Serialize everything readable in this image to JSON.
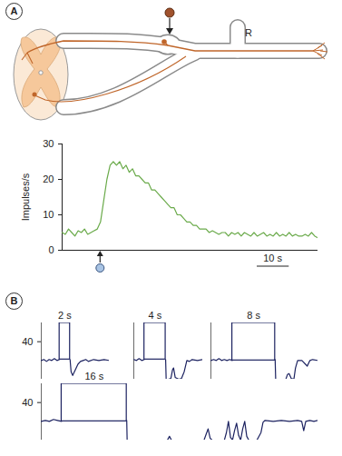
{
  "chart_data": [
    {
      "type": "line",
      "title": "A",
      "annotations": [
        "R"
      ],
      "y_label": "Impulses/s",
      "color": "#6aaa4a",
      "xlim": [
        0,
        80
      ],
      "ylim": [
        0,
        30
      ],
      "yticks": [
        0,
        10,
        20,
        30
      ],
      "tick_labels": "y",
      "stimulus": 12,
      "scale_bar": {
        "start": 61,
        "length": 10,
        "label": "10 s"
      },
      "x": [
        0,
        1,
        2,
        3,
        4,
        5,
        6,
        7,
        8,
        9,
        10,
        11,
        12,
        13,
        14,
        15,
        16,
        17,
        18,
        19,
        20,
        21,
        22,
        23,
        24,
        25,
        26,
        27,
        28,
        29,
        30,
        31,
        32,
        33,
        34,
        35,
        36,
        37,
        38,
        39,
        40,
        41,
        42,
        43,
        44,
        45,
        46,
        47,
        48,
        49,
        50,
        51,
        52,
        53,
        54,
        55,
        56,
        57,
        58,
        59,
        60,
        61,
        62,
        63,
        64,
        65,
        66,
        67,
        68,
        69,
        70,
        71,
        72,
        73,
        74,
        75,
        76,
        77,
        78,
        79,
        80
      ],
      "values": [
        5,
        4.5,
        6,
        5,
        4,
        5.5,
        5,
        6,
        4.5,
        5,
        5.5,
        6,
        8,
        14,
        20,
        24,
        25,
        24,
        25,
        23,
        24,
        22,
        23,
        21,
        21,
        20,
        19,
        19,
        17,
        17,
        16,
        15,
        14,
        13,
        12,
        12,
        10,
        10,
        9,
        8,
        8,
        7,
        7,
        6,
        6,
        6,
        5,
        5.5,
        5,
        4.5,
        5,
        5,
        4,
        5,
        4.5,
        5,
        4,
        5,
        4.5,
        4,
        5,
        4,
        4.5,
        5,
        4,
        4.5,
        4,
        5,
        4,
        4.5,
        4,
        5,
        4,
        4.5,
        4,
        4,
        4.5,
        4,
        5,
        4,
        3.5
      ]
    },
    {
      "type": "line",
      "title": "B",
      "color": "#1c2260",
      "ylim": [
        0,
        60
      ],
      "yticks": [
        40
      ],
      "tick_labels": "y",
      "series": [
        {
          "xlim": [
            0,
            13
          ],
          "x": [
            0,
            0.5,
            1,
            1.5,
            2,
            2.5,
            3,
            3.5,
            4.5,
            5.5,
            5.7,
            6,
            6.5,
            7,
            7.5,
            8,
            8.5,
            9,
            10,
            11,
            12,
            13
          ],
          "values": [
            20,
            21,
            19,
            21,
            20,
            22,
            20,
            21,
            null,
            21,
            8,
            4,
            10,
            16,
            19,
            20,
            21,
            19,
            21,
            20,
            21,
            20
          ],
          "stimulus": {
            "start": 3.5,
            "duration": 2,
            "label": "2 s"
          }
        },
        {
          "xlim": [
            0,
            13
          ],
          "x": [
            0,
            0.5,
            1,
            1.5,
            2,
            4,
            6,
            6.1,
            6.5,
            7,
            7.3,
            7.5,
            7.8,
            8.5,
            9,
            9.5,
            10,
            10.5,
            11,
            12,
            13
          ],
          "values": [
            21,
            20,
            22,
            20,
            21,
            null,
            21,
            0,
            0,
            1,
            10,
            12,
            2,
            0,
            1,
            8,
            20,
            19,
            21,
            20,
            21
          ],
          "stimulus": {
            "start": 2,
            "duration": 4,
            "label": "4 s"
          }
        },
        {
          "xlim": [
            0,
            20
          ],
          "x": [
            0,
            0.5,
            1,
            1.5,
            2,
            2.5,
            3,
            3.5,
            4,
            8,
            12,
            12.1,
            13,
            14,
            14.3,
            14.6,
            15,
            15.5,
            15.8,
            16.2,
            17,
            18,
            18.5,
            19,
            20
          ],
          "values": [
            20,
            21,
            20,
            22,
            20,
            21,
            20,
            21,
            20,
            null,
            21,
            0,
            0,
            0,
            5,
            6,
            1,
            0,
            12,
            20,
            20,
            14,
            20,
            21,
            20
          ],
          "stimulus": {
            "start": 4,
            "duration": 8,
            "label": "8 s"
          }
        },
        {
          "xlim": [
            0,
            68
          ],
          "x": [
            0,
            1,
            2,
            3,
            4,
            5,
            13,
            21,
            21.1,
            25,
            30,
            31,
            31.5,
            32,
            35,
            40,
            40.5,
            41,
            41.5,
            42,
            45,
            45.5,
            46,
            46.5,
            47,
            47.5,
            48,
            48.5,
            49,
            49.5,
            50,
            50.5,
            51,
            53,
            54,
            54.5,
            55,
            57,
            59,
            61,
            63,
            64,
            64.5,
            65,
            66,
            67,
            68
          ],
          "values": [
            20,
            21,
            20,
            22,
            21,
            20,
            null,
            21,
            0,
            0,
            0,
            0,
            4,
            0,
            0,
            0,
            6,
            12,
            2,
            0,
            0,
            8,
            20,
            3,
            0,
            10,
            18,
            5,
            0,
            12,
            20,
            4,
            0,
            0,
            8,
            19,
            21,
            20,
            21,
            20,
            21,
            20,
            10,
            20,
            21,
            20,
            21
          ],
          "stimulus": {
            "start": 5,
            "duration": 16,
            "label": "16 s"
          }
        }
      ]
    }
  ]
}
